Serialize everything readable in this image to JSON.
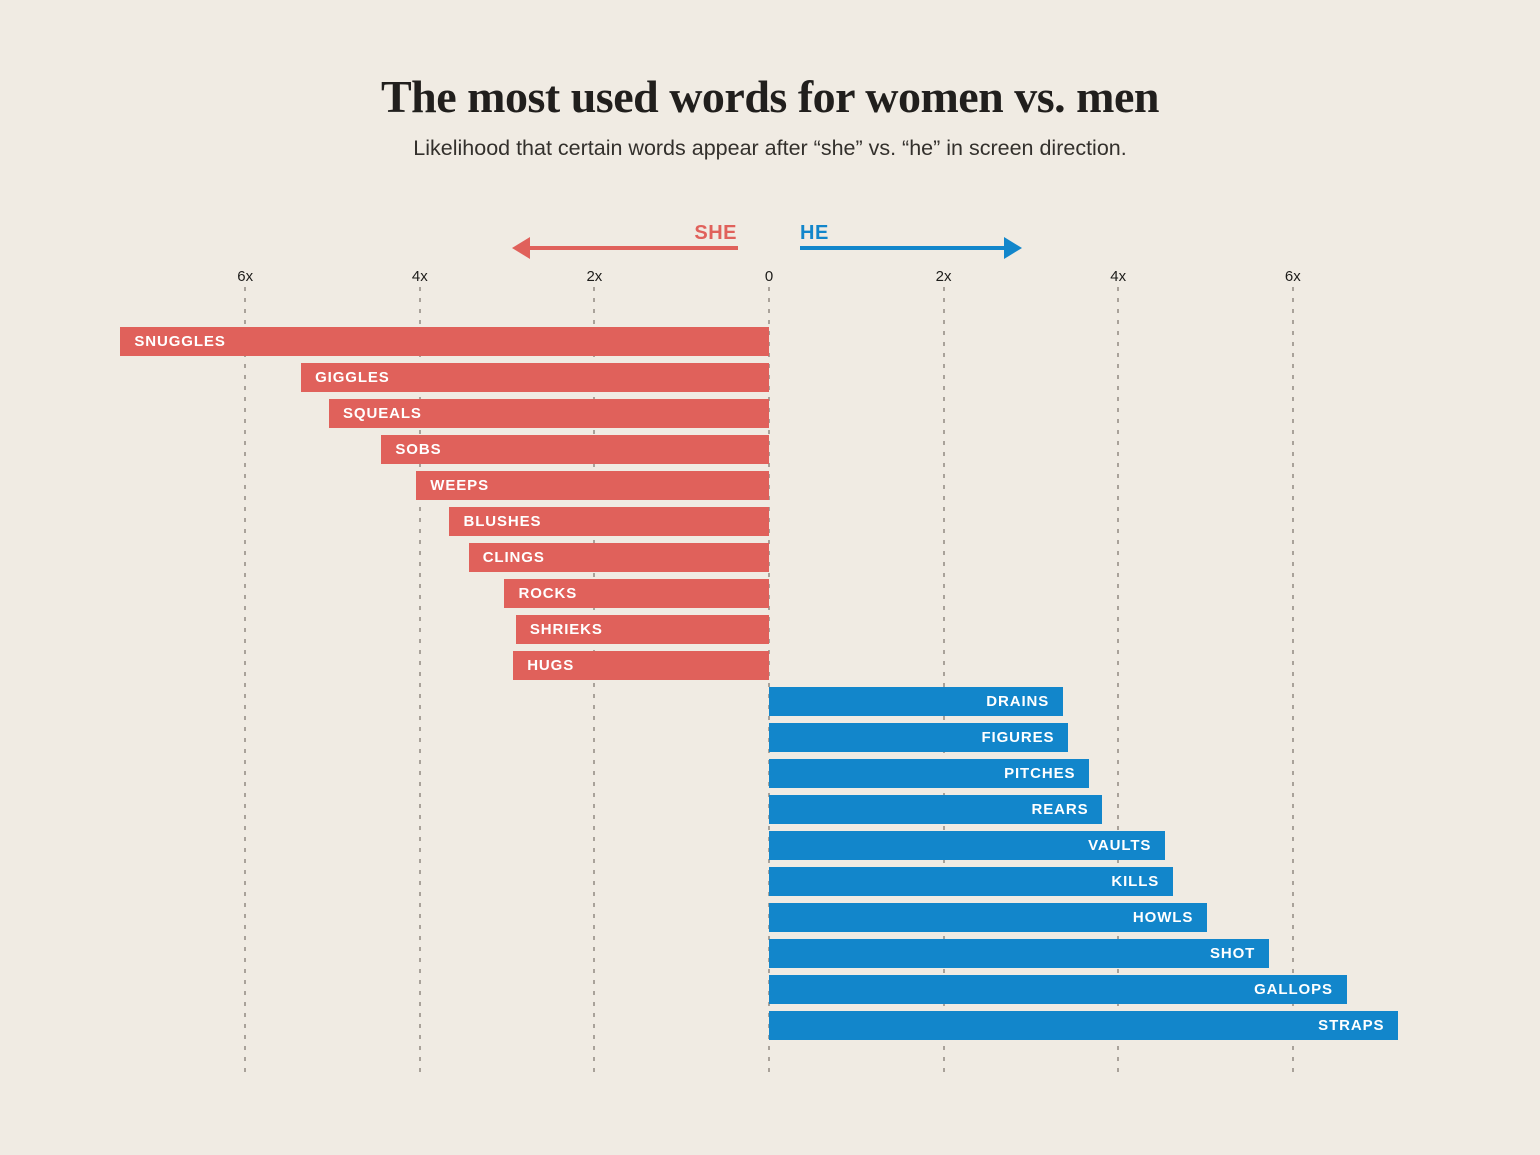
{
  "chart_data": {
    "type": "bar",
    "orientation": "horizontal-diverging",
    "title": "The most used words for women vs. men",
    "subtitle": "Likelihood that certain words appear after “she” vs. “he” in screen direction.",
    "legend": {
      "left_label": "SHE",
      "right_label": "HE",
      "left_color": "#e0615b",
      "right_color": "#1286cb"
    },
    "axis": {
      "ticks": [
        {
          "label": "6x",
          "value": -6
        },
        {
          "label": "4x",
          "value": -4
        },
        {
          "label": "2x",
          "value": -2
        },
        {
          "label": "0",
          "value": 0
        },
        {
          "label": "2x",
          "value": 2
        },
        {
          "label": "4x",
          "value": 4
        },
        {
          "label": "6x",
          "value": 6
        }
      ],
      "xlim": [
        -7.6,
        7.6
      ],
      "grid": "dashed-vertical",
      "unit": "x (likelihood multiplier)"
    },
    "series": [
      {
        "name": "SHE",
        "direction": "left",
        "color": "#e0615b",
        "points": [
          {
            "label": "SNUGGLES",
            "value": 7.43
          },
          {
            "label": "GIGGLES",
            "value": 5.36
          },
          {
            "label": "SQUEALS",
            "value": 5.04
          },
          {
            "label": "SOBS",
            "value": 4.44
          },
          {
            "label": "WEEPS",
            "value": 4.04
          },
          {
            "label": "BLUSHES",
            "value": 3.66
          },
          {
            "label": "CLINGS",
            "value": 3.44
          },
          {
            "label": "ROCKS",
            "value": 3.03
          },
          {
            "label": "SHRIEKS",
            "value": 2.9
          },
          {
            "label": "HUGS",
            "value": 2.93
          }
        ]
      },
      {
        "name": "HE",
        "direction": "right",
        "color": "#1286cb",
        "points": [
          {
            "label": "DRAINS",
            "value": 3.37
          },
          {
            "label": "FIGURES",
            "value": 3.43
          },
          {
            "label": "PITCHES",
            "value": 3.67
          },
          {
            "label": "REARS",
            "value": 3.82
          },
          {
            "label": "VAULTS",
            "value": 4.54
          },
          {
            "label": "KILLS",
            "value": 4.63
          },
          {
            "label": "HOWLS",
            "value": 5.02
          },
          {
            "label": "SHOT",
            "value": 5.73
          },
          {
            "label": "GALLOPS",
            "value": 6.62
          },
          {
            "label": "STRAPS",
            "value": 7.21
          }
        ]
      }
    ],
    "colors": {
      "background": "#f0ebe3",
      "gridline": "#a9a29a",
      "title_text": "#211f1d",
      "subtitle_text": "#33302c",
      "bar_label_text": "#ffffff"
    }
  }
}
